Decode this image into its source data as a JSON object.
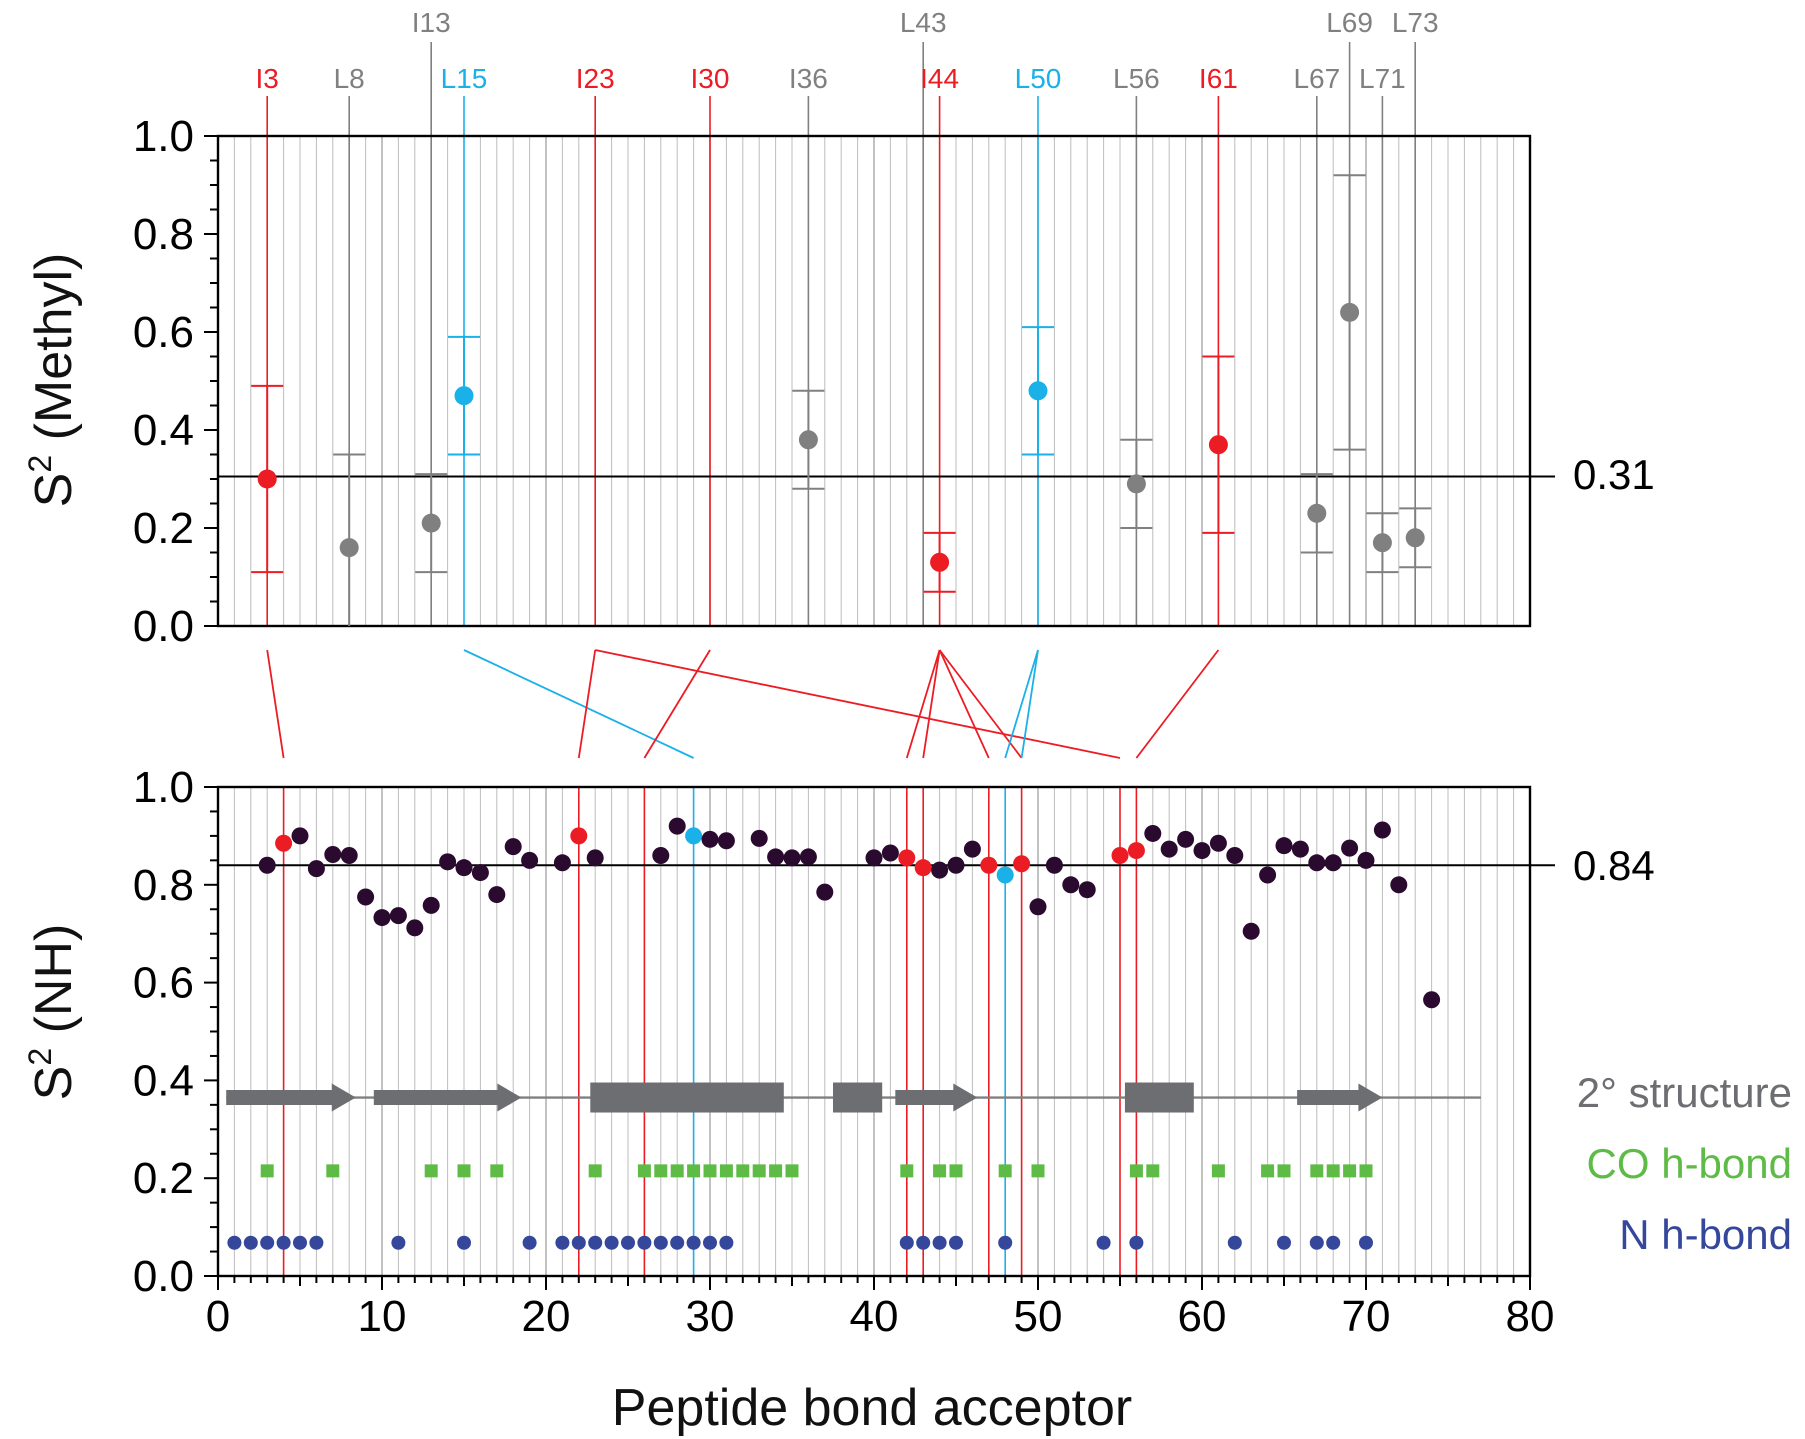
{
  "colors": {
    "red": "#ec1c24",
    "blue": "#1ab0e8",
    "gray": "#808080",
    "dark": "#2a0a2e",
    "green": "#5dbb46",
    "navy": "#34479b",
    "grid": "#bdbdbd",
    "structure": "#6d6e71"
  },
  "chart_data": [
    {
      "type": "scatter",
      "panel": "top",
      "ylabel": "S² (Methyl)",
      "ylabel_base": "S",
      "ylabel_sup": "2",
      "ylabel_rest": " (Methyl)",
      "xlim": [
        0,
        80
      ],
      "ylim": [
        0,
        1.0
      ],
      "yticks": [
        "0.0",
        "0.2",
        "0.4",
        "0.6",
        "0.8",
        "1.0"
      ],
      "reference_line": {
        "value": 0.305,
        "label": "0.31"
      },
      "residues": [
        {
          "label": "I3",
          "x": 3,
          "y": 0.3,
          "err_low": 0.11,
          "err_high": 0.49,
          "color": "red",
          "label_row": 1
        },
        {
          "label": "L8",
          "x": 8,
          "y": 0.16,
          "err_low": 0.0,
          "err_high": 0.35,
          "color": "gray",
          "label_row": 1
        },
        {
          "label": "I13",
          "x": 13,
          "y": 0.21,
          "err_low": 0.11,
          "err_high": 0.31,
          "color": "gray",
          "label_row": 0
        },
        {
          "label": "L15",
          "x": 15,
          "y": 0.47,
          "err_low": 0.35,
          "err_high": 0.59,
          "color": "blue",
          "label_row": 1
        },
        {
          "label": "I23",
          "x": 23,
          "y": null,
          "err_low": null,
          "err_high": null,
          "color": "red",
          "label_row": 1
        },
        {
          "label": "I30",
          "x": 30,
          "y": null,
          "err_low": null,
          "err_high": null,
          "color": "red",
          "label_row": 1
        },
        {
          "label": "I36",
          "x": 36,
          "y": 0.38,
          "err_low": 0.28,
          "err_high": 0.48,
          "color": "gray",
          "label_row": 1
        },
        {
          "label": "L43",
          "x": 43,
          "y": null,
          "err_low": null,
          "err_high": null,
          "color": "gray",
          "label_row": 0
        },
        {
          "label": "I44",
          "x": 44,
          "y": 0.13,
          "err_low": 0.07,
          "err_high": 0.19,
          "color": "red",
          "label_row": 1
        },
        {
          "label": "L50",
          "x": 50,
          "y": 0.48,
          "err_low": 0.35,
          "err_high": 0.61,
          "color": "blue",
          "label_row": 1
        },
        {
          "label": "L56",
          "x": 56,
          "y": 0.29,
          "err_low": 0.2,
          "err_high": 0.38,
          "color": "gray",
          "label_row": 1
        },
        {
          "label": "I61",
          "x": 61,
          "y": 0.37,
          "err_low": 0.19,
          "err_high": 0.55,
          "color": "red",
          "label_row": 1
        },
        {
          "label": "L67",
          "x": 67,
          "y": 0.23,
          "err_low": 0.15,
          "err_high": 0.31,
          "color": "gray",
          "label_row": 1
        },
        {
          "label": "L69",
          "x": 69,
          "y": 0.64,
          "err_low": 0.36,
          "err_high": 0.92,
          "color": "gray",
          "label_row": 0
        },
        {
          "label": "L71",
          "x": 71,
          "y": 0.17,
          "err_low": 0.11,
          "err_high": 0.23,
          "color": "gray",
          "label_row": 1
        },
        {
          "label": "L73",
          "x": 73,
          "y": 0.18,
          "err_low": 0.12,
          "err_high": 0.24,
          "color": "gray",
          "label_row": 0
        }
      ]
    },
    {
      "type": "scatter",
      "panel": "bottom",
      "ylabel": "S² (NH)",
      "ylabel_base": "S",
      "ylabel_sup": "2",
      "ylabel_rest": " (NH)",
      "xlabel": "Peptide bond acceptor",
      "xlim": [
        0,
        80
      ],
      "ylim": [
        0,
        1.0
      ],
      "xticks": [
        "0",
        "10",
        "20",
        "30",
        "40",
        "50",
        "60",
        "70",
        "80"
      ],
      "yticks": [
        "0.0",
        "0.2",
        "0.4",
        "0.6",
        "0.8",
        "1.0"
      ],
      "reference_line": {
        "value": 0.84,
        "label": "0.84"
      },
      "points": [
        [
          3,
          0.84
        ],
        [
          4,
          0.885
        ],
        [
          5,
          0.9
        ],
        [
          6,
          0.833
        ],
        [
          7,
          0.862
        ],
        [
          8,
          0.86
        ],
        [
          9,
          0.775
        ],
        [
          10,
          0.733
        ],
        [
          11,
          0.737
        ],
        [
          12,
          0.712
        ],
        [
          13,
          0.758
        ],
        [
          14,
          0.847
        ],
        [
          15,
          0.835
        ],
        [
          16,
          0.825
        ],
        [
          17,
          0.78
        ],
        [
          18,
          0.878
        ],
        [
          19,
          0.85
        ],
        [
          21,
          0.845
        ],
        [
          22,
          0.9
        ],
        [
          23,
          0.855
        ],
        [
          27,
          0.86
        ],
        [
          28,
          0.92
        ],
        [
          29,
          0.9
        ],
        [
          30,
          0.893
        ],
        [
          31,
          0.89
        ],
        [
          33,
          0.895
        ],
        [
          34,
          0.857
        ],
        [
          35,
          0.855
        ],
        [
          36,
          0.857
        ],
        [
          37,
          0.785
        ],
        [
          40,
          0.855
        ],
        [
          41,
          0.865
        ],
        [
          42,
          0.855
        ],
        [
          43,
          0.835
        ],
        [
          44,
          0.83
        ],
        [
          45,
          0.84
        ],
        [
          46,
          0.873
        ],
        [
          47,
          0.84
        ],
        [
          48,
          0.82
        ],
        [
          49,
          0.843
        ],
        [
          50,
          0.755
        ],
        [
          51,
          0.84
        ],
        [
          52,
          0.8
        ],
        [
          53,
          0.79
        ],
        [
          55,
          0.86
        ],
        [
          56,
          0.87
        ],
        [
          57,
          0.905
        ],
        [
          58,
          0.873
        ],
        [
          59,
          0.893
        ],
        [
          60,
          0.87
        ],
        [
          61,
          0.885
        ],
        [
          62,
          0.86
        ],
        [
          63,
          0.705
        ],
        [
          64,
          0.82
        ],
        [
          65,
          0.88
        ],
        [
          66,
          0.873
        ],
        [
          67,
          0.845
        ],
        [
          68,
          0.845
        ],
        [
          69,
          0.875
        ],
        [
          70,
          0.85
        ],
        [
          71,
          0.912
        ],
        [
          72,
          0.8
        ],
        [
          74,
          0.565
        ]
      ],
      "red_points": [
        4,
        22,
        42,
        43,
        47,
        49,
        55,
        56
      ],
      "blue_points": [
        29,
        48
      ],
      "red_vlines": [
        4,
        22,
        26,
        42,
        43,
        47,
        49,
        55,
        56
      ],
      "blue_vlines": [
        29,
        48
      ],
      "secondary_structure": {
        "label": "2° structure",
        "y": 0.365,
        "line": [
          0.5,
          77
        ],
        "strands": [
          [
            0.5,
            8.4
          ],
          [
            9.5,
            18.5
          ],
          [
            41.3,
            46.3
          ],
          [
            65.8,
            71
          ]
        ],
        "helices": [
          [
            22.7,
            34.5
          ],
          [
            37.5,
            40.5
          ],
          [
            55.3,
            59.5
          ]
        ]
      },
      "co_hbond": {
        "label": "CO h-bond",
        "y": 0.215,
        "x": [
          3,
          7,
          13,
          15,
          17,
          23,
          26,
          27,
          28,
          29,
          30,
          31,
          32,
          33,
          34,
          35,
          42,
          44,
          45,
          48,
          50,
          56,
          57,
          61,
          64,
          65,
          67,
          68,
          69,
          70
        ]
      },
      "n_hbond": {
        "label": "N h-bond",
        "y": 0.068,
        "x": [
          1,
          2,
          3,
          4,
          5,
          6,
          11,
          15,
          19,
          21,
          22,
          23,
          24,
          25,
          26,
          27,
          28,
          29,
          30,
          31,
          42,
          43,
          44,
          45,
          48,
          54,
          56,
          62,
          65,
          67,
          68,
          70
        ]
      },
      "connections": [
        {
          "from": 3,
          "to": 4,
          "color": "red"
        },
        {
          "from": 15,
          "to": 29,
          "color": "blue"
        },
        {
          "from": 23,
          "to": 22,
          "color": "red"
        },
        {
          "from": 23,
          "to": 55,
          "color": "red"
        },
        {
          "from": 30,
          "to": 26,
          "color": "red"
        },
        {
          "from": 44,
          "to": 42,
          "color": "red"
        },
        {
          "from": 44,
          "to": 43,
          "color": "red"
        },
        {
          "from": 44,
          "to": 47,
          "color": "red"
        },
        {
          "from": 44,
          "to": 49,
          "color": "red"
        },
        {
          "from": 50,
          "to": 48,
          "color": "blue"
        },
        {
          "from": 50,
          "to": 49,
          "color": "blue"
        },
        {
          "from": 61,
          "to": 56,
          "color": "red"
        }
      ]
    }
  ]
}
